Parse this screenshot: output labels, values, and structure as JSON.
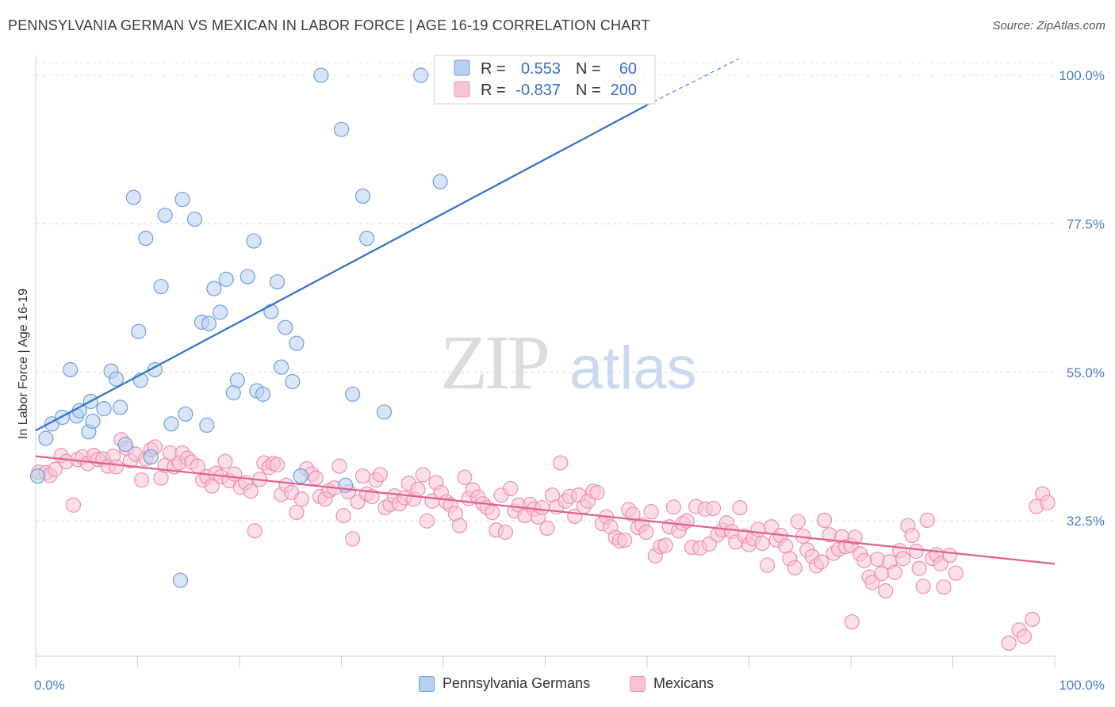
{
  "title": "PENNSYLVANIA GERMAN VS MEXICAN IN LABOR FORCE | AGE 16-19 CORRELATION CHART",
  "source": "Source: ZipAtlas.com",
  "watermark": {
    "zip": "ZIP",
    "atlas": "atlas"
  },
  "chart_data": {
    "type": "scatter",
    "title": "PENNSYLVANIA GERMAN VS MEXICAN IN LABOR FORCE | AGE 16-19 CORRELATION CHART",
    "xlabel": "",
    "ylabel": "In Labor Force | Age 16-19",
    "xlim": [
      0,
      100
    ],
    "ylim": [
      12,
      103
    ],
    "x_tick_labels": {
      "left": "0.0%",
      "right": "100.0%"
    },
    "y_ticks": [
      {
        "value": 100,
        "label": "100.0%"
      },
      {
        "value": 77.5,
        "label": "77.5%"
      },
      {
        "value": 55,
        "label": "55.0%"
      },
      {
        "value": 32.5,
        "label": "32.5%"
      }
    ],
    "grid": true,
    "legend_placement": "top-center",
    "series": [
      {
        "name": "Pennsylvania Germans",
        "color": "#6f9fe0",
        "fill": "#b7cff1",
        "line_color": "#2f6fcf",
        "stats": {
          "r_label": "R =",
          "r": "0.553",
          "n_label": "N =",
          "n": "60"
        },
        "trend": {
          "x": [
            0,
            60
          ],
          "y": [
            46.2,
            95.5
          ],
          "dashed_to": [
            69,
            102.5
          ]
        },
        "points": [
          [
            0.2,
            39.3
          ],
          [
            1,
            45
          ],
          [
            1.6,
            47.2
          ],
          [
            2.6,
            48.2
          ],
          [
            3.4,
            55.4
          ],
          [
            4,
            48.4
          ],
          [
            4.3,
            49.2
          ],
          [
            5.2,
            46
          ],
          [
            5.4,
            50.6
          ],
          [
            5.6,
            47.6
          ],
          [
            6.7,
            49.5
          ],
          [
            7.4,
            55.2
          ],
          [
            7.9,
            54
          ],
          [
            8.3,
            49.7
          ],
          [
            8.8,
            44.1
          ],
          [
            9.6,
            81.5
          ],
          [
            10.1,
            61.2
          ],
          [
            10.3,
            53.8
          ],
          [
            10.8,
            75.3
          ],
          [
            11.3,
            42.2
          ],
          [
            11.7,
            55.4
          ],
          [
            12.3,
            68
          ],
          [
            12.7,
            78.8
          ],
          [
            13.3,
            47.2
          ],
          [
            14.2,
            23.5
          ],
          [
            14.4,
            81.2
          ],
          [
            14.7,
            48.7
          ],
          [
            15.6,
            78.2
          ],
          [
            16.3,
            62.6
          ],
          [
            16.8,
            47
          ],
          [
            17,
            62.4
          ],
          [
            17.5,
            67.7
          ],
          [
            18.1,
            64.1
          ],
          [
            18.7,
            69.1
          ],
          [
            19.4,
            51.9
          ],
          [
            19.8,
            53.8
          ],
          [
            20.8,
            69.5
          ],
          [
            21.4,
            74.9
          ],
          [
            21.7,
            52.2
          ],
          [
            22.3,
            51.7
          ],
          [
            23.1,
            64.2
          ],
          [
            23.7,
            68.7
          ],
          [
            24.1,
            55.8
          ],
          [
            24.5,
            61.8
          ],
          [
            25.2,
            53.6
          ],
          [
            25.6,
            59.4
          ],
          [
            26,
            39.3
          ],
          [
            28,
            100
          ],
          [
            30,
            91.8
          ],
          [
            30.4,
            37.9
          ],
          [
            31.1,
            51.7
          ],
          [
            32.1,
            81.7
          ],
          [
            32.5,
            75.3
          ],
          [
            34.2,
            49
          ],
          [
            37.8,
            100
          ],
          [
            39.7,
            83.9
          ],
          [
            58,
            100
          ],
          [
            59,
            100
          ]
        ]
      },
      {
        "name": "Mexicans",
        "color": "#ee8fb0",
        "fill": "#f7c4d6",
        "line_color": "#e35f8f",
        "stats": {
          "r_label": "R =",
          "r": "-0.837",
          "n_label": "N =",
          "n": "200"
        },
        "trend": {
          "x": [
            0,
            100
          ],
          "y": [
            42.3,
            26
          ]
        },
        "points": [
          [
            0.3,
            39.9
          ],
          [
            1,
            39.8
          ],
          [
            1.4,
            39.4
          ],
          [
            1.9,
            40.3
          ],
          [
            2.5,
            42.4
          ],
          [
            3,
            41.5
          ],
          [
            3.7,
            34.9
          ],
          [
            4.1,
            41.8
          ],
          [
            4.6,
            42.2
          ],
          [
            5.1,
            41.2
          ],
          [
            5.7,
            42.4
          ],
          [
            6.1,
            41.8
          ],
          [
            6.6,
            41.9
          ],
          [
            7.1,
            40.8
          ],
          [
            7.6,
            42.3
          ],
          [
            7.9,
            40.7
          ],
          [
            8.4,
            44.8
          ],
          [
            8.9,
            43.5
          ],
          [
            9.3,
            41.6
          ],
          [
            9.8,
            42.6
          ],
          [
            10.4,
            38.7
          ],
          [
            10.8,
            41.9
          ],
          [
            11.3,
            43.3
          ],
          [
            11.7,
            43.7
          ],
          [
            12.3,
            39
          ],
          [
            12.7,
            40.9
          ],
          [
            13.2,
            42.8
          ],
          [
            13.6,
            40.7
          ],
          [
            14.1,
            41.3
          ],
          [
            14.4,
            42.8
          ],
          [
            14.9,
            42
          ],
          [
            15.3,
            41.4
          ],
          [
            15.9,
            40.8
          ],
          [
            16.4,
            38.7
          ],
          [
            16.8,
            39.2
          ],
          [
            17.3,
            37.8
          ],
          [
            17.7,
            39.7
          ],
          [
            18.2,
            39.2
          ],
          [
            18.6,
            41.5
          ],
          [
            19,
            38.6
          ],
          [
            19.5,
            39.6
          ],
          [
            20.1,
            37.6
          ],
          [
            20.6,
            38.3
          ],
          [
            21.1,
            37
          ],
          [
            21.5,
            31
          ],
          [
            22,
            38.8
          ],
          [
            22.4,
            41.3
          ],
          [
            22.9,
            40.6
          ],
          [
            23.3,
            41.2
          ],
          [
            23.7,
            41
          ],
          [
            24.1,
            36.5
          ],
          [
            24.6,
            37.9
          ],
          [
            25.1,
            36.8
          ],
          [
            25.6,
            33.8
          ],
          [
            26.1,
            35.8
          ],
          [
            26.6,
            40.4
          ],
          [
            27.1,
            39.6
          ],
          [
            27.5,
            39
          ],
          [
            27.9,
            36.2
          ],
          [
            28.4,
            35.8
          ],
          [
            28.8,
            37.1
          ],
          [
            29.3,
            37.5
          ],
          [
            29.8,
            40.8
          ],
          [
            30.2,
            33.3
          ],
          [
            30.7,
            36.9
          ],
          [
            31.1,
            29.8
          ],
          [
            31.6,
            35.4
          ],
          [
            32.1,
            39.3
          ],
          [
            32.5,
            36.6
          ],
          [
            33,
            36.2
          ],
          [
            33.4,
            38.7
          ],
          [
            33.8,
            39.5
          ],
          [
            34.3,
            34.5
          ],
          [
            34.8,
            35
          ],
          [
            35.2,
            36.3
          ],
          [
            35.7,
            35.1
          ],
          [
            36.2,
            36
          ],
          [
            36.6,
            38.2
          ],
          [
            37.1,
            35.8
          ],
          [
            37.5,
            37.3
          ],
          [
            38,
            39.5
          ],
          [
            38.4,
            32.5
          ],
          [
            38.9,
            35.5
          ],
          [
            39.3,
            38.3
          ],
          [
            39.8,
            36.8
          ],
          [
            40.3,
            35.4
          ],
          [
            40.7,
            34.9
          ],
          [
            41.2,
            33.6
          ],
          [
            41.6,
            31.8
          ],
          [
            42.1,
            39.1
          ],
          [
            42.5,
            35.9
          ],
          [
            42.9,
            37.2
          ],
          [
            43.4,
            36.1
          ],
          [
            43.9,
            35.1
          ],
          [
            44.3,
            34.5
          ],
          [
            44.8,
            33.8
          ],
          [
            45.2,
            31.1
          ],
          [
            45.7,
            36.4
          ],
          [
            46.1,
            30.8
          ],
          [
            46.6,
            37.4
          ],
          [
            47,
            34
          ],
          [
            47.4,
            34.9
          ],
          [
            48,
            33.3
          ],
          [
            48.5,
            35
          ],
          [
            48.9,
            34.3
          ],
          [
            49.3,
            33.1
          ],
          [
            49.7,
            34.5
          ],
          [
            50.2,
            31.4
          ],
          [
            50.7,
            36.4
          ],
          [
            51.1,
            34.6
          ],
          [
            51.5,
            41.3
          ],
          [
            52,
            35.5
          ],
          [
            52.4,
            36.2
          ],
          [
            52.9,
            33.2
          ],
          [
            53.3,
            36.4
          ],
          [
            53.8,
            34.7
          ],
          [
            54.2,
            35.5
          ],
          [
            54.7,
            37
          ],
          [
            55.1,
            36.8
          ],
          [
            55.6,
            32.1
          ],
          [
            56,
            33.1
          ],
          [
            56.4,
            31.6
          ],
          [
            56.9,
            30
          ],
          [
            57.3,
            29.5
          ],
          [
            57.8,
            29.6
          ],
          [
            58.2,
            34.2
          ],
          [
            58.6,
            33.5
          ],
          [
            59.1,
            31.5
          ],
          [
            59.5,
            31.9
          ],
          [
            59.9,
            30.8
          ],
          [
            60.4,
            33.9
          ],
          [
            60.8,
            27.2
          ],
          [
            61.3,
            28.6
          ],
          [
            61.8,
            28.8
          ],
          [
            62.2,
            31.6
          ],
          [
            62.6,
            34.6
          ],
          [
            63.1,
            31
          ],
          [
            63.5,
            32.1
          ],
          [
            63.9,
            32.5
          ],
          [
            64.4,
            28.5
          ],
          [
            64.8,
            34.7
          ],
          [
            65.2,
            28.4
          ],
          [
            65.7,
            34.3
          ],
          [
            66.1,
            29
          ],
          [
            66.5,
            34.4
          ],
          [
            66.9,
            30.4
          ],
          [
            67.4,
            31.1
          ],
          [
            67.8,
            32.2
          ],
          [
            68.3,
            30.9
          ],
          [
            68.7,
            29.3
          ],
          [
            69.1,
            34.5
          ],
          [
            69.6,
            30.2
          ],
          [
            70,
            28.9
          ],
          [
            70.4,
            29.8
          ],
          [
            70.9,
            31.2
          ],
          [
            71.3,
            29.1
          ],
          [
            71.8,
            25.8
          ],
          [
            72.2,
            31.6
          ],
          [
            72.7,
            29.6
          ],
          [
            73.1,
            30.3
          ],
          [
            73.6,
            28.7
          ],
          [
            74,
            26.8
          ],
          [
            74.5,
            25.4
          ],
          [
            74.8,
            32.4
          ],
          [
            75.3,
            30.2
          ],
          [
            75.7,
            28.1
          ],
          [
            76.2,
            27.1
          ],
          [
            76.6,
            25.7
          ],
          [
            77.1,
            26.3
          ],
          [
            77.4,
            32.6
          ],
          [
            77.9,
            30.4
          ],
          [
            78.3,
            27.6
          ],
          [
            78.8,
            28.2
          ],
          [
            79.1,
            30.1
          ],
          [
            79.5,
            28.6
          ],
          [
            80,
            28.8
          ],
          [
            80.4,
            30
          ],
          [
            80.9,
            27.5
          ],
          [
            81.3,
            26.5
          ],
          [
            81.8,
            24
          ],
          [
            82.1,
            23.2
          ],
          [
            82.6,
            26.7
          ],
          [
            83,
            24.5
          ],
          [
            83.4,
            21.9
          ],
          [
            83.8,
            26.3
          ],
          [
            84.3,
            24.7
          ],
          [
            84.8,
            28
          ],
          [
            85.1,
            26.8
          ],
          [
            85.6,
            31.8
          ],
          [
            86,
            30.3
          ],
          [
            86.4,
            27.9
          ],
          [
            86.7,
            25.3
          ],
          [
            87.1,
            22.6
          ],
          [
            87.5,
            32.6
          ],
          [
            88,
            26.8
          ],
          [
            88.4,
            27.4
          ],
          [
            88.8,
            26
          ],
          [
            89.1,
            22.5
          ],
          [
            89.7,
            27.3
          ],
          [
            90.3,
            24.6
          ]
        ],
        "outliers": [
          [
            80.1,
            17.2
          ],
          [
            95.5,
            14
          ],
          [
            96.5,
            16
          ],
          [
            97,
            15
          ],
          [
            97.8,
            17.6
          ],
          [
            98.2,
            34.7
          ],
          [
            98.8,
            36.6
          ],
          [
            99.3,
            35.3
          ]
        ]
      }
    ]
  },
  "bottom_legend": [
    {
      "label": "Pennsylvania Germans",
      "fill": "#b7cff1",
      "stroke": "#6f9fe0"
    },
    {
      "label": "Mexicans",
      "fill": "#f7c4d6",
      "stroke": "#ee8fb0"
    }
  ]
}
